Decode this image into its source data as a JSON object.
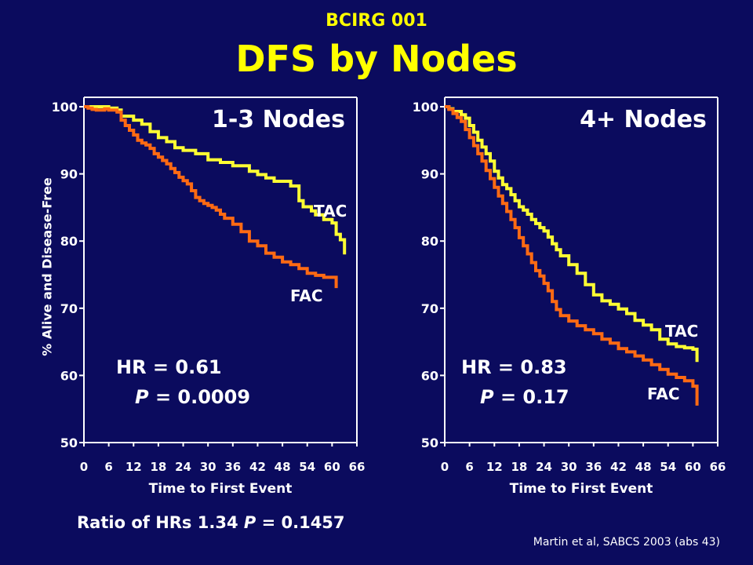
{
  "header": {
    "subtitle": "BCIRG 001",
    "title": "DFS by Nodes"
  },
  "footer": {
    "ratio_prefix": "Ratio of HRs 1.34 ",
    "ratio_p": "P",
    "ratio_suffix": " = 0.1457",
    "citation": "Martin et al, SABCS 2003 (abs 43)"
  },
  "colors": {
    "background": "#0b0b5e",
    "TAC": "#ffff33",
    "FAC": "#ff6a13",
    "text": "#ffffff",
    "title": "#ffff00"
  },
  "chart_data": [
    {
      "type": "line",
      "title": "1-3 Nodes",
      "xlabel": "Time to First Event",
      "ylabel": "% Alive and Disease-Free",
      "xlim": [
        0,
        66
      ],
      "ylim": [
        50,
        100
      ],
      "xticks": [
        "0",
        "6",
        "12",
        "18",
        "24",
        "30",
        "36",
        "42",
        "48",
        "54",
        "60",
        "66"
      ],
      "yticks": [
        "50",
        "60",
        "70",
        "80",
        "90",
        "100"
      ],
      "annotations": {
        "hr": "HR = 0.61",
        "p_label": "P",
        "p_value": " = 0.0009"
      },
      "series": [
        {
          "name": "TAC",
          "x": [
            0,
            3,
            6,
            8,
            9,
            12,
            14,
            16,
            18,
            20,
            22,
            24,
            27,
            30,
            33,
            36,
            40,
            42,
            44,
            46,
            50,
            52,
            53,
            55,
            56,
            58,
            60,
            61,
            62,
            63
          ],
          "y": [
            100,
            100,
            99.8,
            99.5,
            98.6,
            98,
            97.4,
            96.3,
            95.4,
            94.8,
            93.9,
            93.5,
            93,
            92.1,
            91.7,
            91.2,
            90.4,
            89.9,
            89.4,
            88.9,
            88.2,
            86,
            85.1,
            84.5,
            83.9,
            83.2,
            82.7,
            81,
            80.2,
            78
          ]
        },
        {
          "name": "FAC",
          "x": [
            0,
            1,
            2,
            3,
            5,
            6,
            8,
            9,
            10,
            11,
            12,
            13,
            14,
            15,
            16,
            17,
            18,
            19,
            20,
            21,
            22,
            23,
            24,
            25,
            26,
            27,
            28,
            29,
            30,
            31,
            32,
            33,
            34,
            36,
            38,
            40,
            42,
            44,
            46,
            48,
            50,
            52,
            54,
            56,
            58,
            60,
            61
          ],
          "y": [
            100,
            99.8,
            99.6,
            99.5,
            99.7,
            99.5,
            99.2,
            98,
            97.2,
            96.5,
            95.8,
            95,
            94.6,
            94.3,
            93.8,
            93,
            92.5,
            92,
            91.5,
            90.8,
            90.2,
            89.5,
            89,
            88.5,
            87.5,
            86.5,
            86,
            85.6,
            85.3,
            85,
            84.6,
            84,
            83.4,
            82.5,
            81.4,
            80,
            79.3,
            78.2,
            77.6,
            76.9,
            76.5,
            75.9,
            75.2,
            74.9,
            74.6,
            74.6,
            73
          ]
        }
      ]
    },
    {
      "type": "line",
      "title": "4+ Nodes",
      "xlabel": "Time to First Event",
      "ylabel": "",
      "xlim": [
        0,
        66
      ],
      "ylim": [
        50,
        100
      ],
      "xticks": [
        "0",
        "6",
        "12",
        "18",
        "24",
        "30",
        "36",
        "42",
        "48",
        "54",
        "60",
        "66"
      ],
      "yticks": [
        "50",
        "60",
        "70",
        "80",
        "90",
        "100"
      ],
      "annotations": {
        "hr": "HR = 0.83",
        "p_label": "P",
        "p_value": " = 0.17"
      },
      "series": [
        {
          "name": "TAC",
          "x": [
            0,
            1,
            2,
            4,
            5,
            6,
            7,
            8,
            9,
            10,
            11,
            12,
            13,
            14,
            15,
            16,
            17,
            18,
            19,
            20,
            21,
            22,
            23,
            24,
            25,
            26,
            27,
            28,
            30,
            32,
            34,
            36,
            38,
            40,
            42,
            44,
            46,
            48,
            50,
            52,
            54,
            56,
            58,
            60,
            61
          ],
          "y": [
            100,
            99.7,
            99.3,
            98.8,
            98.3,
            97.2,
            96.2,
            95,
            94,
            93,
            91.9,
            90.4,
            89.4,
            88.4,
            87.8,
            86.9,
            86,
            85.1,
            84.6,
            84,
            83.2,
            82.6,
            82,
            81.5,
            80.6,
            79.6,
            78.7,
            77.8,
            76.5,
            75.2,
            73.5,
            72,
            71.1,
            70.6,
            69.9,
            69.2,
            68.2,
            67.5,
            66.8,
            65.4,
            64.7,
            64.3,
            64.1,
            63.9,
            62
          ]
        },
        {
          "name": "FAC",
          "x": [
            0,
            1,
            2,
            3,
            4,
            5,
            6,
            7,
            8,
            9,
            10,
            11,
            12,
            13,
            14,
            15,
            16,
            17,
            18,
            19,
            20,
            21,
            22,
            23,
            24,
            25,
            26,
            27,
            28,
            30,
            32,
            34,
            36,
            38,
            40,
            42,
            44,
            46,
            48,
            50,
            52,
            54,
            56,
            58,
            60,
            61
          ],
          "y": [
            100,
            99.6,
            99,
            98.4,
            97.8,
            96.6,
            95.4,
            94.2,
            93,
            91.9,
            90.5,
            89.3,
            88,
            86.7,
            85.6,
            84.4,
            83.2,
            82,
            80.5,
            79.3,
            78.1,
            76.8,
            75.6,
            74.8,
            73.7,
            72.6,
            71,
            69.8,
            68.9,
            68.1,
            67.4,
            66.8,
            66.2,
            65.4,
            64.8,
            64,
            63.5,
            62.9,
            62.3,
            61.6,
            60.9,
            60.2,
            59.7,
            59.2,
            58.4,
            55.5
          ]
        }
      ]
    }
  ]
}
